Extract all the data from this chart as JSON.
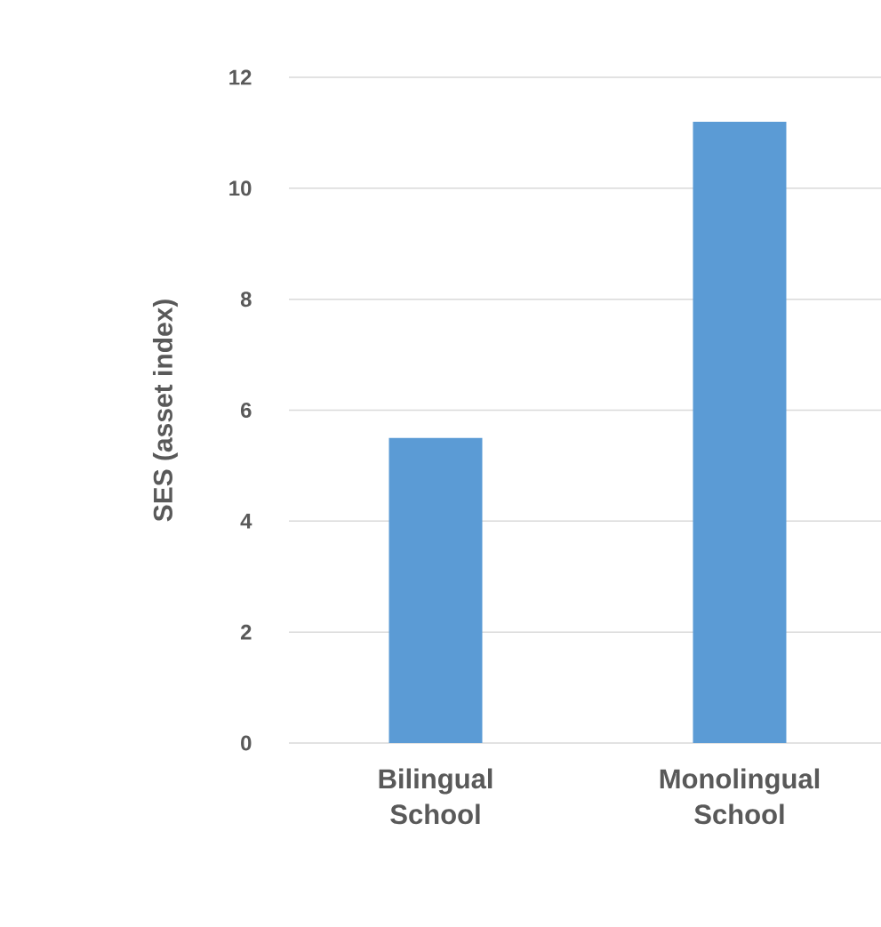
{
  "chart_data": {
    "type": "bar",
    "ylabel": "SES (asset index)",
    "categories": [
      "Bilingual School",
      "Monolingual School"
    ],
    "values": [
      5.5,
      11.2
    ],
    "color": "#5b9bd5",
    "ylim": [
      0,
      12
    ],
    "yticks": [
      0,
      2,
      4,
      6,
      8,
      10,
      12
    ],
    "grid": "y"
  }
}
